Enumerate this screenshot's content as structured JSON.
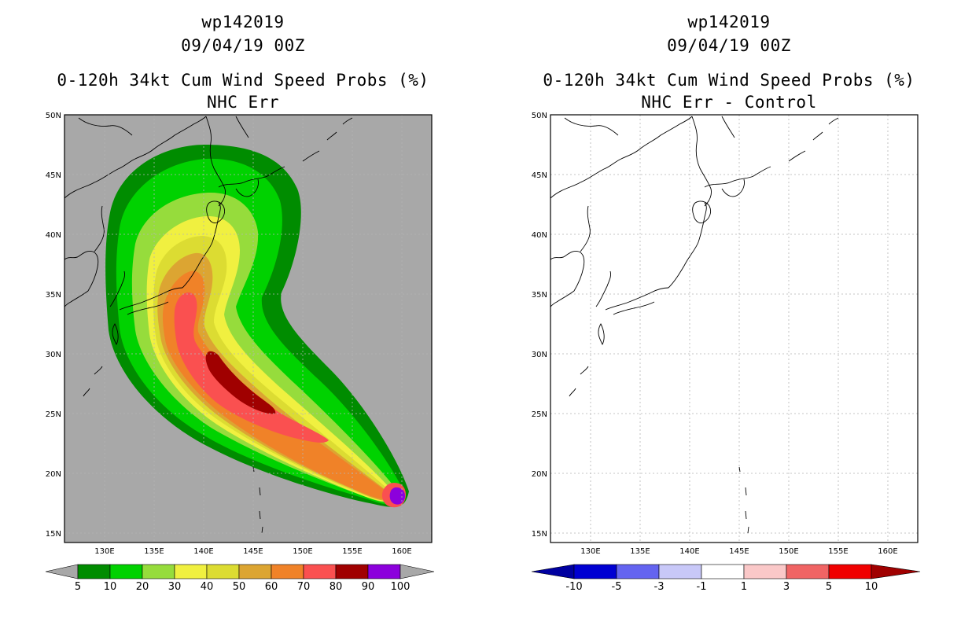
{
  "panels": [
    {
      "title_line1": "wp142019",
      "title_line2": "09/04/19 00Z",
      "title_line3": "0-120h 34kt Cum Wind Speed Probs (%)",
      "title_line4": "NHC Err",
      "lat_labels": [
        "50N",
        "45N",
        "40N",
        "35N",
        "30N",
        "25N",
        "20N",
        "15N"
      ],
      "lon_labels": [
        "130E",
        "135E",
        "140E",
        "145E",
        "150E",
        "155E",
        "160E"
      ],
      "colorbar": {
        "labels": [
          "5",
          "10",
          "20",
          "30",
          "40",
          "50",
          "60",
          "70",
          "80",
          "90",
          "100"
        ],
        "colors": [
          "#008c00",
          "#00d200",
          "#96dc3c",
          "#f0f040",
          "#dcdc32",
          "#dca532",
          "#f08228",
          "#fa5050",
          "#a00000",
          "#8c00dc"
        ],
        "end_color": "#a8a8a8"
      }
    },
    {
      "title_line1": "wp142019",
      "title_line2": "09/04/19 00Z",
      "title_line3": "0-120h 34kt Cum Wind Speed Probs (%)",
      "title_line4": "NHC Err - Control",
      "lat_labels": [
        "50N",
        "45N",
        "40N",
        "35N",
        "30N",
        "25N",
        "20N",
        "15N"
      ],
      "lon_labels": [
        "130E",
        "135E",
        "140E",
        "145E",
        "150E",
        "155E",
        "160E"
      ],
      "colorbar": {
        "labels": [
          "-10",
          "-5",
          "-3",
          "-1",
          "1",
          "3",
          "5",
          "10"
        ],
        "colors": [
          "#0000d2",
          "#6464f0",
          "#c8c8f8",
          "#ffffff",
          "#fac8c8",
          "#f06464",
          "#f00000"
        ],
        "left_end_color": "#0000a0",
        "right_end_color": "#a00000"
      }
    }
  ],
  "colors": {
    "map_background_left": "#a8a8a8",
    "map_background_right": "#ffffff",
    "grid": "#b4b4b4",
    "coastline": "#000000"
  }
}
